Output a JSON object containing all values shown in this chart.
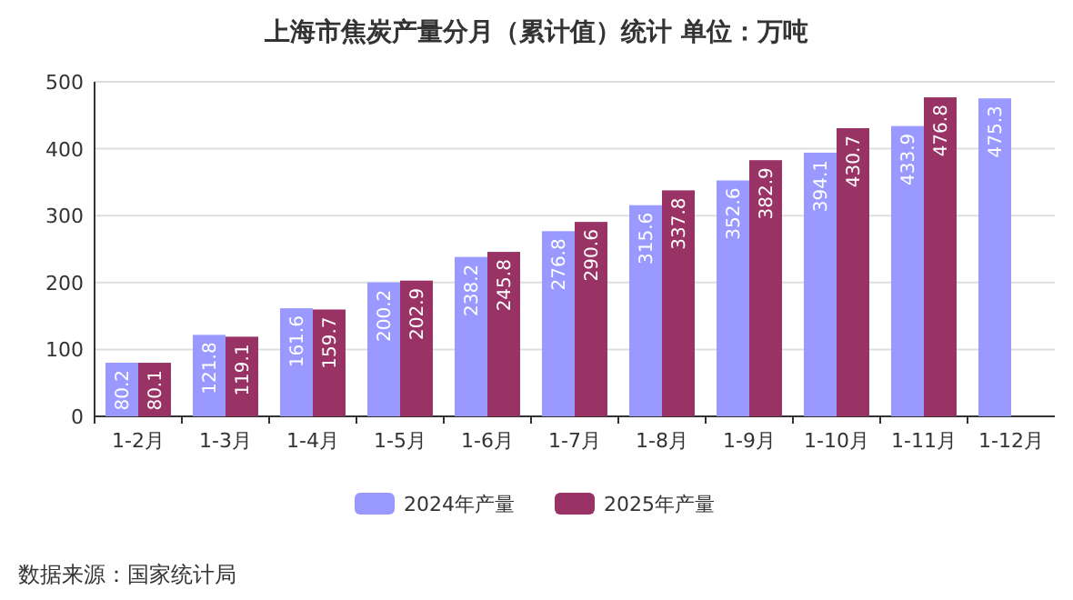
{
  "chart_data": {
    "type": "bar",
    "title": "上海市焦炭产量分月（累计值）统计  单位：万吨",
    "categories": [
      "1-2月",
      "1-3月",
      "1-4月",
      "1-5月",
      "1-6月",
      "1-7月",
      "1-8月",
      "1-9月",
      "1-10月",
      "1-11月",
      "1-12月"
    ],
    "series": [
      {
        "name": "2024年产量",
        "color": "#9999ff",
        "values": [
          80.2,
          121.8,
          161.6,
          200.2,
          238.2,
          276.8,
          315.6,
          352.6,
          394.1,
          433.9,
          475.3
        ]
      },
      {
        "name": "2025年产量",
        "color": "#993366",
        "values": [
          80.1,
          119.1,
          159.7,
          202.9,
          245.8,
          290.6,
          337.8,
          382.9,
          430.7,
          476.8,
          null
        ]
      }
    ],
    "ylim": [
      0,
      500
    ],
    "yticks": [
      0,
      100,
      200,
      300,
      400,
      500
    ],
    "grid": "y",
    "legend": "bottom",
    "data_labels": true,
    "annotations": [
      "数据来源：国家统计局"
    ]
  }
}
